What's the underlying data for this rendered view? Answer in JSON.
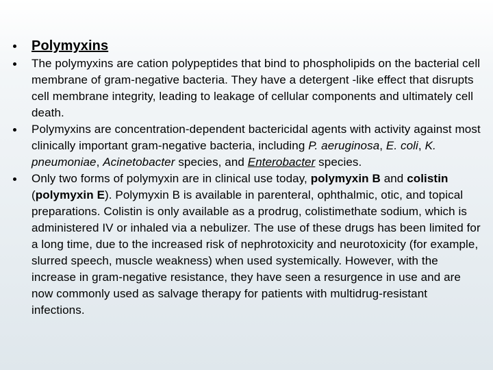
{
  "title": "Polymyxins",
  "bullets": [
    {
      "runs": [
        {
          "text": "The polymyxins are cation polypeptides that bind to phospholipids on the bacterial cell membrane of gram-negative bacteria. They have a detergent -like effect that disrupts cell membrane integrity, leading to leakage of cellular components and ultimately cell death."
        }
      ]
    },
    {
      "runs": [
        {
          "text": "Polymyxins are concentration-dependent bactericidal agents with activity against most clinically important gram-negative bacteria, including "
        },
        {
          "text": "P. aeruginosa",
          "style": "italic"
        },
        {
          "text": ", "
        },
        {
          "text": "E. coli",
          "style": "italic"
        },
        {
          "text": ", "
        },
        {
          "text": "K. pneumoniae",
          "style": "italic"
        },
        {
          "text": ", "
        },
        {
          "text": "Acinetobacter",
          "style": "italic"
        },
        {
          "text": " species, and "
        },
        {
          "text": "Enterobacter",
          "style": "italic-underline"
        },
        {
          "text": " species."
        }
      ]
    },
    {
      "runs": [
        {
          "text": "Only two forms of polymyxin are in clinical use today, "
        },
        {
          "text": "polymyxin B",
          "style": "bold"
        },
        {
          "text": " and "
        },
        {
          "text": "colistin",
          "style": "bold"
        },
        {
          "text": " ("
        },
        {
          "text": "polymyxin E",
          "style": "bold"
        },
        {
          "text": "). Polymyxin B is available in parenteral, ophthalmic, otic, and topical preparations. Colistin is only available as a prodrug, colistimethate sodium, which is administered IV or inhaled via a nebulizer. The use of these drugs has been limited for a long time, due to the increased risk of nephrotoxicity and neurotoxicity (for example, slurred speech, muscle weakness) when used systemically. However, with the increase in gram-negative resistance, they have seen a resurgence in use and are now commonly used as salvage therapy for patients with multidrug-resistant infections."
        }
      ]
    }
  ]
}
